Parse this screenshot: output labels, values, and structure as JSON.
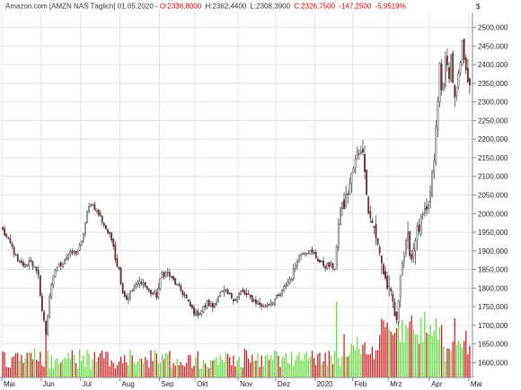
{
  "header": {
    "instrument": "Amazon.com [AMZN NAS Täglich] 01.05.2020 -",
    "open": "O:2336,8000",
    "high": "H:2362,4400",
    "low": "L:2308,3900",
    "close": "C:2326,7500",
    "change": "-147,2500",
    "change_pct": "-5,9519%"
  },
  "colors": {
    "up_volume": "#66dd44",
    "down_volume": "#cc2222",
    "down_candle_body": "#b71c1c",
    "up_candle_body": "#ffffff",
    "candle_outline": "#333333",
    "header_red": "#cc0000"
  },
  "chart_data": {
    "type": "candlestick",
    "currency_label": "$",
    "y_axis": {
      "min": 1560,
      "max": 2540,
      "ticks": [
        1600,
        1650,
        1700,
        1750,
        1800,
        1850,
        1900,
        1950,
        2000,
        2050,
        2100,
        2150,
        2200,
        2250,
        2300,
        2350,
        2400,
        2450,
        2500
      ],
      "tick_labels": [
        "1600,000",
        "1650,000",
        "1700,000",
        "1750,000",
        "1800,000",
        "1850,000",
        "1900,000",
        "1950,000",
        "2000,000",
        "2050,000",
        "2100,000",
        "2150,000",
        "2200,000",
        "2250,000",
        "2300,000",
        "2350,000",
        "2400,000",
        "2450,000",
        "2500,000"
      ],
      "position": "right"
    },
    "x_axis": {
      "months": [
        {
          "label": "Mai",
          "index": 0
        },
        {
          "label": "Jun",
          "index": 21
        },
        {
          "label": "Jul",
          "index": 42
        },
        {
          "label": "Aug",
          "index": 63
        },
        {
          "label": "Sep",
          "index": 84
        },
        {
          "label": "Okt",
          "index": 103
        },
        {
          "label": "Nov",
          "index": 126
        },
        {
          "label": "Dez",
          "index": 146
        },
        {
          "label": "2020",
          "index": 167
        },
        {
          "label": "Feb",
          "index": 187
        },
        {
          "label": "Mrz",
          "index": 206
        },
        {
          "label": "Apr",
          "index": 228
        },
        {
          "label": "Mai",
          "index": 249
        }
      ],
      "n_days": 250
    },
    "grid": true,
    "anchors": [
      [
        0,
        1955
      ],
      [
        2,
        1935
      ],
      [
        5,
        1910
      ],
      [
        8,
        1870
      ],
      [
        12,
        1860
      ],
      [
        15,
        1875
      ],
      [
        19,
        1830
      ],
      [
        21,
        1740
      ],
      [
        23,
        1680
      ],
      [
        25,
        1780
      ],
      [
        28,
        1850
      ],
      [
        32,
        1870
      ],
      [
        35,
        1890
      ],
      [
        40,
        1900
      ],
      [
        42,
        1920
      ],
      [
        45,
        2000
      ],
      [
        47,
        2030
      ],
      [
        50,
        2010
      ],
      [
        53,
        1980
      ],
      [
        56,
        1950
      ],
      [
        59,
        1920
      ],
      [
        60,
        1880
      ],
      [
        62,
        1850
      ],
      [
        64,
        1790
      ],
      [
        66,
        1770
      ],
      [
        70,
        1800
      ],
      [
        74,
        1820
      ],
      [
        78,
        1790
      ],
      [
        82,
        1780
      ],
      [
        85,
        1840
      ],
      [
        88,
        1840
      ],
      [
        91,
        1820
      ],
      [
        94,
        1800
      ],
      [
        97,
        1780
      ],
      [
        100,
        1750
      ],
      [
        103,
        1730
      ],
      [
        106,
        1740
      ],
      [
        109,
        1760
      ],
      [
        112,
        1750
      ],
      [
        115,
        1780
      ],
      [
        118,
        1790
      ],
      [
        121,
        1780
      ],
      [
        124,
        1770
      ],
      [
        127,
        1790
      ],
      [
        130,
        1780
      ],
      [
        133,
        1770
      ],
      [
        136,
        1760
      ],
      [
        139,
        1750
      ],
      [
        142,
        1760
      ],
      [
        145,
        1770
      ],
      [
        148,
        1780
      ],
      [
        151,
        1810
      ],
      [
        154,
        1830
      ],
      [
        157,
        1880
      ],
      [
        160,
        1900
      ],
      [
        163,
        1900
      ],
      [
        166,
        1890
      ],
      [
        169,
        1870
      ],
      [
        172,
        1860
      ],
      [
        175,
        1860
      ],
      [
        177,
        1855
      ],
      [
        180,
        2020
      ],
      [
        182,
        2020
      ],
      [
        184,
        2060
      ],
      [
        186,
        2100
      ],
      [
        189,
        2160
      ],
      [
        191,
        2180
      ],
      [
        193,
        2130
      ],
      [
        195,
        2000
      ],
      [
        197,
        1980
      ],
      [
        199,
        1930
      ],
      [
        201,
        1900
      ],
      [
        203,
        1840
      ],
      [
        206,
        1790
      ],
      [
        208,
        1760
      ],
      [
        210,
        1700
      ],
      [
        212,
        1850
      ],
      [
        214,
        1890
      ],
      [
        216,
        1930
      ],
      [
        218,
        1880
      ],
      [
        220,
        1940
      ],
      [
        222,
        1960
      ],
      [
        224,
        1990
      ],
      [
        226,
        2000
      ],
      [
        228,
        2050
      ],
      [
        230,
        2150
      ],
      [
        232,
        2300
      ],
      [
        233,
        2400
      ],
      [
        234,
        2330
      ],
      [
        236,
        2400
      ],
      [
        238,
        2380
      ],
      [
        239,
        2420
      ],
      [
        241,
        2300
      ],
      [
        243,
        2360
      ],
      [
        245,
        2450
      ],
      [
        247,
        2400
      ],
      [
        249,
        2330
      ]
    ],
    "volume": {
      "up_color": "green",
      "down_color": "red"
    }
  }
}
